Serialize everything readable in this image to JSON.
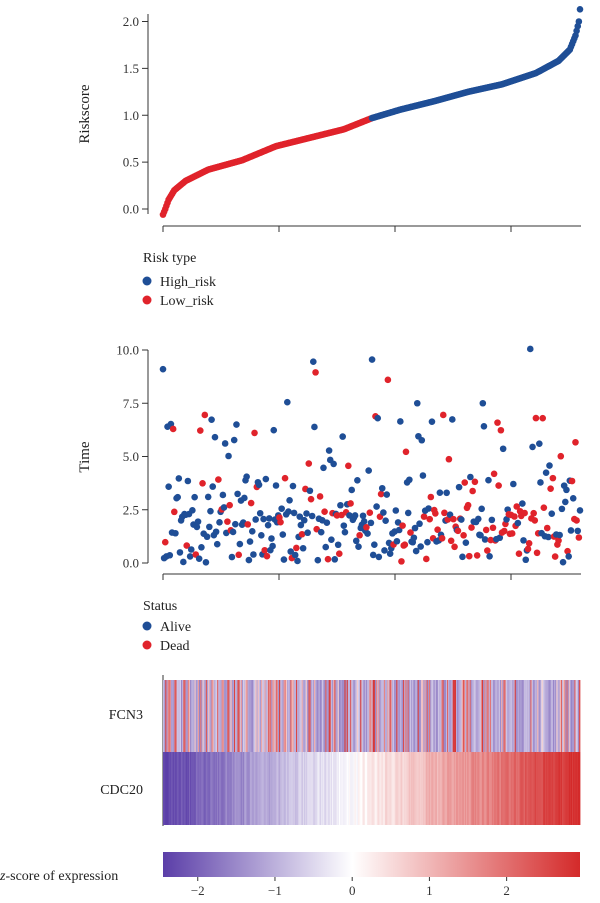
{
  "colors": {
    "high_risk": "#1f4e96",
    "low_risk": "#e0232b",
    "alive": "#1f4e96",
    "dead": "#e0232b",
    "heat_low": "#5b3ea8",
    "heat_mid": "#ffffff",
    "heat_high": "#d42a2a"
  },
  "chart_data": [
    {
      "type": "scatter",
      "panel": "riskscore",
      "ylabel": "Riskscore",
      "ylim": [
        -0.1,
        2.25
      ],
      "yticks": [
        0.0,
        0.5,
        1.0,
        1.5,
        2.0
      ],
      "ytick_labels": [
        "0.0",
        "0.5",
        "1.0",
        "1.5",
        "2.0"
      ],
      "n_patients": 370,
      "cutoff_index": 185,
      "sorted_riskscore_profile": [
        [
          0,
          -0.06
        ],
        [
          2,
          0.0
        ],
        [
          5,
          0.1
        ],
        [
          10,
          0.2
        ],
        [
          20,
          0.3
        ],
        [
          40,
          0.42
        ],
        [
          70,
          0.52
        ],
        [
          100,
          0.67
        ],
        [
          130,
          0.76
        ],
        [
          160,
          0.85
        ],
        [
          185,
          0.97
        ],
        [
          210,
          1.06
        ],
        [
          240,
          1.15
        ],
        [
          270,
          1.25
        ],
        [
          300,
          1.33
        ],
        [
          330,
          1.45
        ],
        [
          350,
          1.58
        ],
        [
          360,
          1.7
        ],
        [
          365,
          1.85
        ],
        [
          368,
          2.0
        ],
        [
          369,
          2.13
        ]
      ],
      "legend": {
        "title": "Risk type",
        "items": [
          {
            "label": "High_risk",
            "color_key": "high_risk"
          },
          {
            "label": "Low_risk",
            "color_key": "low_risk"
          }
        ]
      }
    },
    {
      "type": "scatter",
      "panel": "survival_time",
      "ylabel": "Time",
      "ylim": [
        -0.2,
        10.5
      ],
      "yticks": [
        0.0,
        2.5,
        5.0,
        7.5,
        10.0
      ],
      "ytick_labels": [
        "0.0",
        "2.5",
        "5.0",
        "7.5",
        "10.0"
      ],
      "n_patients": 370,
      "notable_points": [
        {
          "index": 0,
          "time": 9.1,
          "status": "alive"
        },
        {
          "index": 133,
          "time": 9.45,
          "status": "alive"
        },
        {
          "index": 135,
          "time": 8.95,
          "status": "dead"
        },
        {
          "index": 185,
          "time": 9.55,
          "status": "alive"
        },
        {
          "index": 199,
          "time": 8.6,
          "status": "dead"
        },
        {
          "index": 325,
          "time": 10.05,
          "status": "alive"
        },
        {
          "index": 336,
          "time": 6.8,
          "status": "dead"
        },
        {
          "index": 225,
          "time": 7.5,
          "status": "alive"
        },
        {
          "index": 283,
          "time": 7.5,
          "status": "alive"
        },
        {
          "index": 110,
          "time": 7.55,
          "status": "alive"
        },
        {
          "index": 37,
          "time": 6.95,
          "status": "dead"
        },
        {
          "index": 248,
          "time": 6.95,
          "status": "dead"
        }
      ],
      "legend": {
        "title": "Status",
        "items": [
          {
            "label": "Alive",
            "color_key": "alive"
          },
          {
            "label": "Dead",
            "color_key": "dead"
          }
        ]
      }
    },
    {
      "type": "heatmap",
      "panel": "expression",
      "rows": [
        "FCN3",
        "CDC20"
      ],
      "row_trends": {
        "FCN3": "mostly low (blue) z-scores with scattered high (red) values; red streaks denser on the low-risk (left) side",
        "CDC20": "smooth gradient from about -2.4 at the left (low risk) to about 2.9 at the right (high risk)"
      },
      "colorbar": {
        "title_italic": "z",
        "title_rest": "-score of expression",
        "range": [
          -2.45,
          2.95
        ],
        "ticks": [
          -2,
          -1,
          0,
          1,
          2
        ],
        "tick_labels": [
          "−2",
          "−1",
          "0",
          "1",
          "2"
        ]
      }
    }
  ]
}
